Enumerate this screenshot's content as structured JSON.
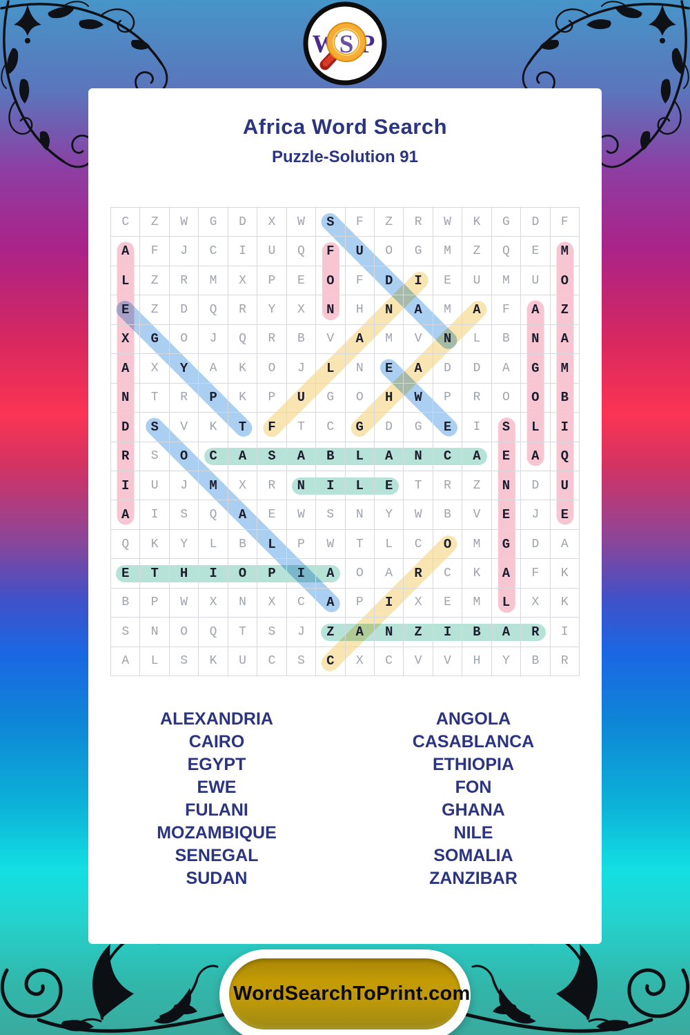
{
  "logo": {
    "letters": [
      "W",
      "S",
      "P"
    ],
    "icon": "magnifier-icon",
    "letter_color": "#4b2a8e",
    "ring_color": "#f2a331",
    "handle_color": "#c2291a"
  },
  "header": {
    "title": "Africa Word Search",
    "subtitle": "Puzzle-Solution 91"
  },
  "puzzle": {
    "size": 16,
    "rows": [
      "CZWGDXWSFZRWKGDF",
      "AFJCIUQFUOGMZQEM",
      "LZRMXPEOFDIEUMUO",
      "EZDQRYXNHNAMAFAZ",
      "XGOJQRBVAMVNLBNA",
      "AXYAKOJLNEADDAGM",
      "NTRPKPUGOHWPROOB",
      "DSVKTFTCGDGEISLI",
      "RSOCASABLANCAEAQ",
      "IUJMXRNILETRZNDU",
      "AISQAEWSNYWBVEJE",
      "QKYLBLPWTLCOMGDA",
      "ETHIOPIAOARCKAFK",
      "BPWXNXCAPIXEMLXK",
      "SNOQTSJZANZIBARI",
      "ALSKUCSCXCVVHYBR"
    ],
    "highlight_colors": {
      "pink": "#f7c6d2",
      "blue": "#abcff1",
      "yellow": "#f8e5b2",
      "teal": "#b6e2d7"
    },
    "words": [
      {
        "word": "ALEXANDRIA",
        "start": [
          1,
          2
        ],
        "end": [
          1,
          11
        ],
        "color": "pink"
      },
      {
        "word": "FON",
        "start": [
          8,
          2
        ],
        "end": [
          8,
          4
        ],
        "color": "pink"
      },
      {
        "word": "MOZAMBIQUE",
        "start": [
          16,
          2
        ],
        "end": [
          16,
          11
        ],
        "color": "pink"
      },
      {
        "word": "ANGOLA",
        "start": [
          15,
          4
        ],
        "end": [
          15,
          9
        ],
        "color": "pink"
      },
      {
        "word": "SENEGAL",
        "start": [
          14,
          8
        ],
        "end": [
          14,
          14
        ],
        "color": "pink"
      },
      {
        "word": "SUDAN",
        "start": [
          8,
          1
        ],
        "end": [
          12,
          5
        ],
        "color": "blue"
      },
      {
        "word": "EGYPT",
        "start": [
          1,
          4
        ],
        "end": [
          5,
          8
        ],
        "color": "blue"
      },
      {
        "word": "EWE",
        "start": [
          10,
          6
        ],
        "end": [
          12,
          8
        ],
        "color": "blue"
      },
      {
        "word": "SOMALIA",
        "start": [
          2,
          8
        ],
        "end": [
          8,
          14
        ],
        "color": "blue"
      },
      {
        "word": "FULANI",
        "start": [
          6,
          8
        ],
        "end": [
          11,
          3
        ],
        "color": "yellow"
      },
      {
        "word": "GHANA",
        "start": [
          9,
          8
        ],
        "end": [
          13,
          4
        ],
        "color": "yellow"
      },
      {
        "word": "CAIRO",
        "start": [
          8,
          16
        ],
        "end": [
          12,
          12
        ],
        "color": "yellow"
      },
      {
        "word": "CASABLANCA",
        "start": [
          4,
          9
        ],
        "end": [
          13,
          9
        ],
        "color": "teal"
      },
      {
        "word": "NILE",
        "start": [
          7,
          10
        ],
        "end": [
          10,
          10
        ],
        "color": "teal"
      },
      {
        "word": "ETHIOPIA",
        "start": [
          1,
          13
        ],
        "end": [
          8,
          13
        ],
        "color": "teal"
      },
      {
        "word": "ZANZIBAR",
        "start": [
          8,
          15
        ],
        "end": [
          15,
          15
        ],
        "color": "teal"
      }
    ]
  },
  "word_list": {
    "left": [
      "ALEXANDRIA",
      "CAIRO",
      "EGYPT",
      "EWE",
      "FULANI",
      "MOZAMBIQUE",
      "SENEGAL",
      "SUDAN"
    ],
    "right": [
      "ANGOLA",
      "CASABLANCA",
      "ETHIOPIA",
      "FON",
      "GHANA",
      "NILE",
      "SOMALIA",
      "ZANZIBAR"
    ]
  },
  "footer": {
    "button_label": "WordSearchToPrint.com"
  }
}
